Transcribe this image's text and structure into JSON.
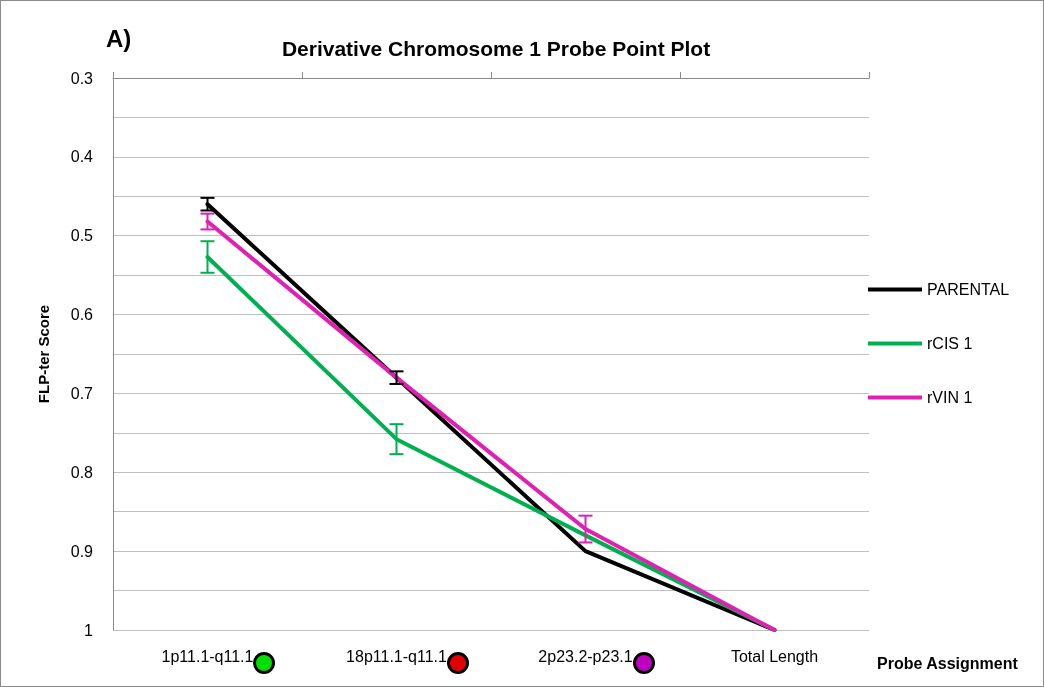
{
  "chart_data": {
    "type": "line",
    "title": "Derivative Chromosome 1 Probe Point Plot",
    "xlabel": "Probe Assignment",
    "ylabel": "FLP-ter Score",
    "annotations": [
      "A)"
    ],
    "categories": [
      "1p11.1-q11.1",
      "18p11.1-q11.1",
      "2p23.2-p23.1",
      "Total Length"
    ],
    "series": [
      {
        "name": "PARENTAL",
        "color": "#000000",
        "values": [
          0.46,
          0.68,
          0.9,
          1
        ],
        "errors": [
          0.008,
          0.008,
          null,
          null
        ]
      },
      {
        "name": "rCIS 1",
        "color": "#00b050",
        "values": [
          0.527,
          0.758,
          0.88,
          1
        ],
        "errors": [
          0.02,
          0.019,
          null,
          null
        ]
      },
      {
        "name": "rVIN 1",
        "color": "#e020b0",
        "values": [
          0.482,
          0.68,
          0.872,
          1
        ],
        "errors": [
          0.01,
          null,
          0.017,
          null
        ]
      }
    ],
    "ylim": [
      1,
      0.3
    ],
    "yticks": [
      0.3,
      {
        "value": 0.35,
        "label": null
      },
      0.4,
      {
        "value": 0.45,
        "label": null
      },
      0.5,
      {
        "value": 0.55,
        "label": null
      },
      0.6,
      {
        "value": 0.65,
        "label": null
      },
      0.7,
      {
        "value": 0.75,
        "label": null
      },
      0.8,
      {
        "value": 0.85,
        "label": null
      },
      0.9,
      {
        "value": 0.95,
        "label": null
      },
      {
        "value": 1,
        "label": "1"
      }
    ],
    "grid": "y",
    "legend": "right",
    "marker": "none",
    "line_style": "solid"
  }
}
